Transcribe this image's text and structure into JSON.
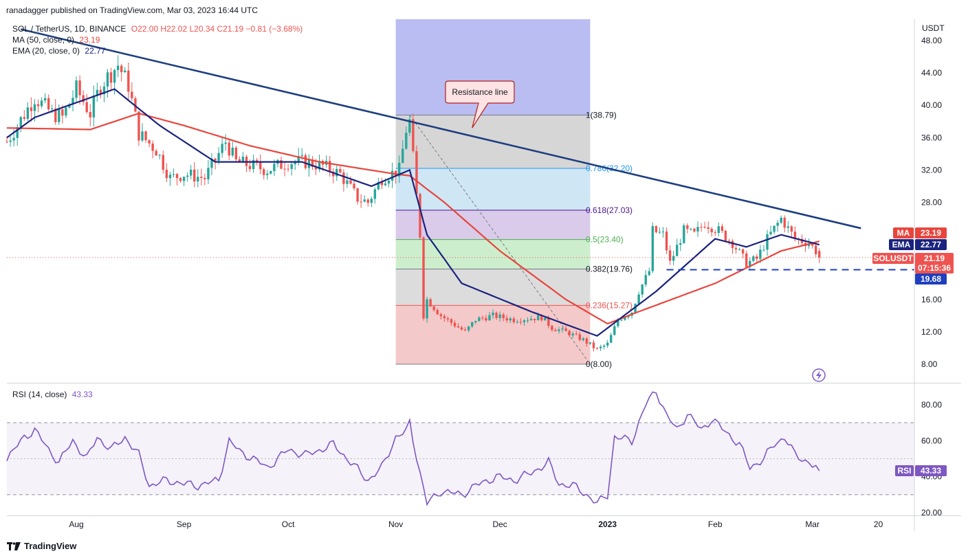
{
  "header": {
    "publisher": "ranadagger published on TradingView.com, Mar 03, 2023 16:44 UTC"
  },
  "legend": {
    "title": "SOL / TetherUS, 1D, BINANCE",
    "ohlc": "O22.00 H22.02 L20.34 C21.19 −0.81 (−3.68%)",
    "ma_label": "MA (50, close, 0)",
    "ma_value": "23.19",
    "ema_label": "EMA (20, close, 0)",
    "ema_value": "22.77",
    "rsi_label": "RSI (14, close)",
    "rsi_value": "43.33"
  },
  "colors": {
    "up": "#26a69a",
    "down": "#ef5350",
    "ma": "#e8453c",
    "ema": "#1a237e",
    "trendline": "#1f3f7f",
    "rsi": "#7e57c2",
    "support": "#1f3fbf"
  },
  "footer": {
    "brand": "TradingView"
  },
  "chart_data": [
    {
      "type": "candlestick",
      "title": "SOL / TetherUS, 1D, BINANCE",
      "currency_label": "USDT",
      "y_ticks": [
        "8.00",
        "12.00",
        "16.00",
        "20.00",
        "24.00",
        "28.00",
        "32.00",
        "36.00",
        "40.00",
        "44.00",
        "48.00"
      ],
      "ylim": [
        8,
        49.5
      ],
      "x_labels": [
        "Aug",
        "Sep",
        "Oct",
        "Nov",
        "Dec",
        "2023",
        "Feb",
        "Mar",
        "20"
      ],
      "close_anchors": [
        {
          "d": "Jul 12",
          "v": 35.5
        },
        {
          "d": "Jul 15",
          "v": 37.5
        },
        {
          "d": "Jul 20",
          "v": 41.0
        },
        {
          "d": "Jul 25",
          "v": 39.0
        },
        {
          "d": "Jul 28",
          "v": 38.5
        },
        {
          "d": "Aug 1",
          "v": 42.0
        },
        {
          "d": "Aug 5",
          "v": 39.0
        },
        {
          "d": "Aug 8",
          "v": 42.5
        },
        {
          "d": "Aug 13",
          "v": 45.0
        },
        {
          "d": "Aug 16",
          "v": 42.5
        },
        {
          "d": "Aug 19",
          "v": 36.5
        },
        {
          "d": "Aug 24",
          "v": 34.5
        },
        {
          "d": "Aug 28",
          "v": 31.0
        },
        {
          "d": "Sep 1",
          "v": 31.5
        },
        {
          "d": "Sep 7",
          "v": 31.0
        },
        {
          "d": "Sep 13",
          "v": 35.5
        },
        {
          "d": "Sep 16",
          "v": 33.0
        },
        {
          "d": "Sep 21",
          "v": 32.5
        },
        {
          "d": "Sep 25",
          "v": 32.0
        },
        {
          "d": "Oct 1",
          "v": 33.0
        },
        {
          "d": "Oct 6",
          "v": 33.0
        },
        {
          "d": "Oct 11",
          "v": 32.5
        },
        {
          "d": "Oct 16",
          "v": 31.5
        },
        {
          "d": "Oct 21",
          "v": 28.5
        },
        {
          "d": "Oct 24",
          "v": 28.0
        },
        {
          "d": "Oct 28",
          "v": 31.0
        },
        {
          "d": "Nov 2",
          "v": 32.0
        },
        {
          "d": "Nov 4",
          "v": 37.0
        },
        {
          "d": "Nov 5",
          "v": 38.0
        },
        {
          "d": "Nov 6",
          "v": 33.5
        },
        {
          "d": "Nov 8",
          "v": 24.0
        },
        {
          "d": "Nov 9",
          "v": 14.0
        },
        {
          "d": "Nov 10",
          "v": 16.0
        },
        {
          "d": "Nov 14",
          "v": 14.0
        },
        {
          "d": "Nov 21",
          "v": 12.0
        },
        {
          "d": "Nov 24",
          "v": 13.5
        },
        {
          "d": "Nov 29",
          "v": 14.0
        },
        {
          "d": "Dec 5",
          "v": 13.5
        },
        {
          "d": "Dec 13",
          "v": 13.8
        },
        {
          "d": "Dec 16",
          "v": 12.5
        },
        {
          "d": "Dec 20",
          "v": 12.0
        },
        {
          "d": "Dec 25",
          "v": 11.0
        },
        {
          "d": "Dec 29",
          "v": 9.8
        },
        {
          "d": "Jan 1",
          "v": 10.5
        },
        {
          "d": "Jan 4",
          "v": 13.5
        },
        {
          "d": "Jan 8",
          "v": 14.5
        },
        {
          "d": "Jan 10",
          "v": 17.0
        },
        {
          "d": "Jan 13",
          "v": 19.5
        },
        {
          "d": "Jan 14",
          "v": 24.5
        },
        {
          "d": "Jan 17",
          "v": 24.0
        },
        {
          "d": "Jan 19",
          "v": 20.5
        },
        {
          "d": "Jan 23",
          "v": 24.5
        },
        {
          "d": "Jan 26",
          "v": 24.0
        },
        {
          "d": "Jan 29",
          "v": 25.5
        },
        {
          "d": "Feb 2",
          "v": 24.5
        },
        {
          "d": "Feb 6",
          "v": 23.0
        },
        {
          "d": "Feb 10",
          "v": 20.5
        },
        {
          "d": "Feb 13",
          "v": 21.0
        },
        {
          "d": "Feb 16",
          "v": 23.5
        },
        {
          "d": "Feb 20",
          "v": 26.0
        },
        {
          "d": "Feb 24",
          "v": 23.5
        },
        {
          "d": "Feb 28",
          "v": 23.0
        },
        {
          "d": "Mar 2",
          "v": 22.0
        },
        {
          "d": "Mar 3",
          "v": 21.19
        }
      ],
      "ma50_anchors": [
        {
          "d": "Jul 12",
          "v": 37.2
        },
        {
          "d": "Aug 5",
          "v": 37.0
        },
        {
          "d": "Aug 19",
          "v": 39.0
        },
        {
          "d": "Sep 1",
          "v": 37.5
        },
        {
          "d": "Sep 20",
          "v": 35.0
        },
        {
          "d": "Oct 10",
          "v": 33.0
        },
        {
          "d": "Nov 1",
          "v": 31.5
        },
        {
          "d": "Nov 5",
          "v": 31.3
        },
        {
          "d": "Nov 15",
          "v": 28.0
        },
        {
          "d": "Dec 1",
          "v": 22.0
        },
        {
          "d": "Dec 20",
          "v": 16.0
        },
        {
          "d": "Jan 1",
          "v": 13.0
        },
        {
          "d": "Jan 10",
          "v": 14.5
        },
        {
          "d": "Feb 1",
          "v": 18.0
        },
        {
          "d": "Feb 20",
          "v": 22.0
        },
        {
          "d": "Mar 3",
          "v": 23.19
        }
      ],
      "ema20_anchors": [
        {
          "d": "Jul 12",
          "v": 36.0
        },
        {
          "d": "Jul 20",
          "v": 38.5
        },
        {
          "d": "Aug 12",
          "v": 42.0
        },
        {
          "d": "Aug 25",
          "v": 37.5
        },
        {
          "d": "Sep 10",
          "v": 33.0
        },
        {
          "d": "Oct 5",
          "v": 33.0
        },
        {
          "d": "Oct 25",
          "v": 30.0
        },
        {
          "d": "Nov 5",
          "v": 32.0
        },
        {
          "d": "Nov 10",
          "v": 24.0
        },
        {
          "d": "Nov 20",
          "v": 18.0
        },
        {
          "d": "Dec 10",
          "v": 14.5
        },
        {
          "d": "Dec 29",
          "v": 11.5
        },
        {
          "d": "Jan 15",
          "v": 17.0
        },
        {
          "d": "Feb 1",
          "v": 23.5
        },
        {
          "d": "Feb 10",
          "v": 22.5
        },
        {
          "d": "Feb 20",
          "v": 24.0
        },
        {
          "d": "Mar 3",
          "v": 22.77
        }
      ],
      "fibonacci": {
        "from_date": "Nov 1",
        "to_date": "Dec 27",
        "low": 8.0,
        "high": 38.79,
        "levels": [
          {
            "ratio": 1,
            "label": "1(38.79)",
            "value": 38.79
          },
          {
            "ratio": 0.786,
            "label": "0.786(32.20)",
            "value": 32.2
          },
          {
            "ratio": 0.618,
            "label": "0.618(27.03)",
            "value": 27.03
          },
          {
            "ratio": 0.5,
            "label": "0.5(23.40)",
            "value": 23.4
          },
          {
            "ratio": 0.382,
            "label": "0.382(19.76)",
            "value": 19.76
          },
          {
            "ratio": 0.236,
            "label": "0.236(15.27)",
            "value": 15.27
          },
          {
            "ratio": 0,
            "label": "0(8.00)",
            "value": 8.0
          }
        ]
      },
      "trendline": [
        {
          "d": "Jul 16",
          "v": 49.4
        },
        {
          "d": "Mar 15",
          "v": 24.8
        }
      ],
      "support": {
        "from_date": "Jan 18",
        "value": 19.68
      },
      "annotation": {
        "text": "Resistance line",
        "date": "Nov 23",
        "value": 37.2
      },
      "price_tags": [
        {
          "label": "MA",
          "value_text": "23.19",
          "value": 23.19,
          "color": "#e8453c"
        },
        {
          "label": "EMA",
          "value_text": "22.77",
          "value": 22.77,
          "color": "#1a237e"
        },
        {
          "label": "SOLUSDT",
          "value_text": "21.19",
          "sub": "07:15:36",
          "value": 21.19,
          "color": "#ef5350"
        },
        {
          "label": "",
          "value_text": "19.68",
          "value": 19.68,
          "color": "#1f3fbf"
        }
      ]
    },
    {
      "type": "line",
      "title": "RSI (14, close)",
      "y_ticks": [
        "20.00",
        "40.00",
        "60.00",
        "80.00"
      ],
      "ylim": [
        18,
        93
      ],
      "band": [
        30,
        70
      ],
      "midline": 50,
      "current": {
        "label": "RSI",
        "value_text": "43.33",
        "value": 43.33
      },
      "anchors": [
        {
          "d": "Jul 12",
          "v": 50
        },
        {
          "d": "Jul 17",
          "v": 62
        },
        {
          "d": "Jul 20",
          "v": 66
        },
        {
          "d": "Jul 24",
          "v": 55
        },
        {
          "d": "Jul 27",
          "v": 48
        },
        {
          "d": "Jul 31",
          "v": 60
        },
        {
          "d": "Aug 4",
          "v": 50
        },
        {
          "d": "Aug 7",
          "v": 62
        },
        {
          "d": "Aug 11",
          "v": 55
        },
        {
          "d": "Aug 15",
          "v": 62
        },
        {
          "d": "Aug 19",
          "v": 52
        },
        {
          "d": "Aug 22",
          "v": 35
        },
        {
          "d": "Aug 27",
          "v": 38
        },
        {
          "d": "Sep 1",
          "v": 36
        },
        {
          "d": "Sep 5",
          "v": 35
        },
        {
          "d": "Sep 11",
          "v": 38
        },
        {
          "d": "Sep 14",
          "v": 60
        },
        {
          "d": "Sep 17",
          "v": 54
        },
        {
          "d": "Sep 21",
          "v": 50
        },
        {
          "d": "Sep 25",
          "v": 45
        },
        {
          "d": "Oct 1",
          "v": 55
        },
        {
          "d": "Oct 6",
          "v": 52
        },
        {
          "d": "Oct 9",
          "v": 54
        },
        {
          "d": "Oct 14",
          "v": 58
        },
        {
          "d": "Oct 19",
          "v": 48
        },
        {
          "d": "Oct 24",
          "v": 38
        },
        {
          "d": "Oct 28",
          "v": 45
        },
        {
          "d": "Nov 1",
          "v": 62
        },
        {
          "d": "Nov 4",
          "v": 65
        },
        {
          "d": "Nov 5",
          "v": 70
        },
        {
          "d": "Nov 8",
          "v": 42
        },
        {
          "d": "Nov 10",
          "v": 25
        },
        {
          "d": "Nov 14",
          "v": 32
        },
        {
          "d": "Nov 20",
          "v": 30
        },
        {
          "d": "Nov 24",
          "v": 35
        },
        {
          "d": "Nov 30",
          "v": 40
        },
        {
          "d": "Dec 5",
          "v": 38
        },
        {
          "d": "Dec 10",
          "v": 42
        },
        {
          "d": "Dec 15",
          "v": 48
        },
        {
          "d": "Dec 18",
          "v": 36
        },
        {
          "d": "Dec 22",
          "v": 35
        },
        {
          "d": "Dec 26",
          "v": 30
        },
        {
          "d": "Dec 29",
          "v": 25
        },
        {
          "d": "Jan 1",
          "v": 30
        },
        {
          "d": "Jan 3",
          "v": 62
        },
        {
          "d": "Jan 8",
          "v": 60
        },
        {
          "d": "Jan 12",
          "v": 80
        },
        {
          "d": "Jan 15",
          "v": 88
        },
        {
          "d": "Jan 18",
          "v": 74
        },
        {
          "d": "Jan 21",
          "v": 66
        },
        {
          "d": "Jan 24",
          "v": 75
        },
        {
          "d": "Jan 28",
          "v": 66
        },
        {
          "d": "Jan 31",
          "v": 72
        },
        {
          "d": "Feb 4",
          "v": 65
        },
        {
          "d": "Feb 8",
          "v": 58
        },
        {
          "d": "Feb 11",
          "v": 45
        },
        {
          "d": "Feb 15",
          "v": 50
        },
        {
          "d": "Feb 18",
          "v": 58
        },
        {
          "d": "Feb 21",
          "v": 62
        },
        {
          "d": "Feb 24",
          "v": 52
        },
        {
          "d": "Feb 28",
          "v": 48
        },
        {
          "d": "Mar 3",
          "v": 43.33
        }
      ]
    }
  ]
}
